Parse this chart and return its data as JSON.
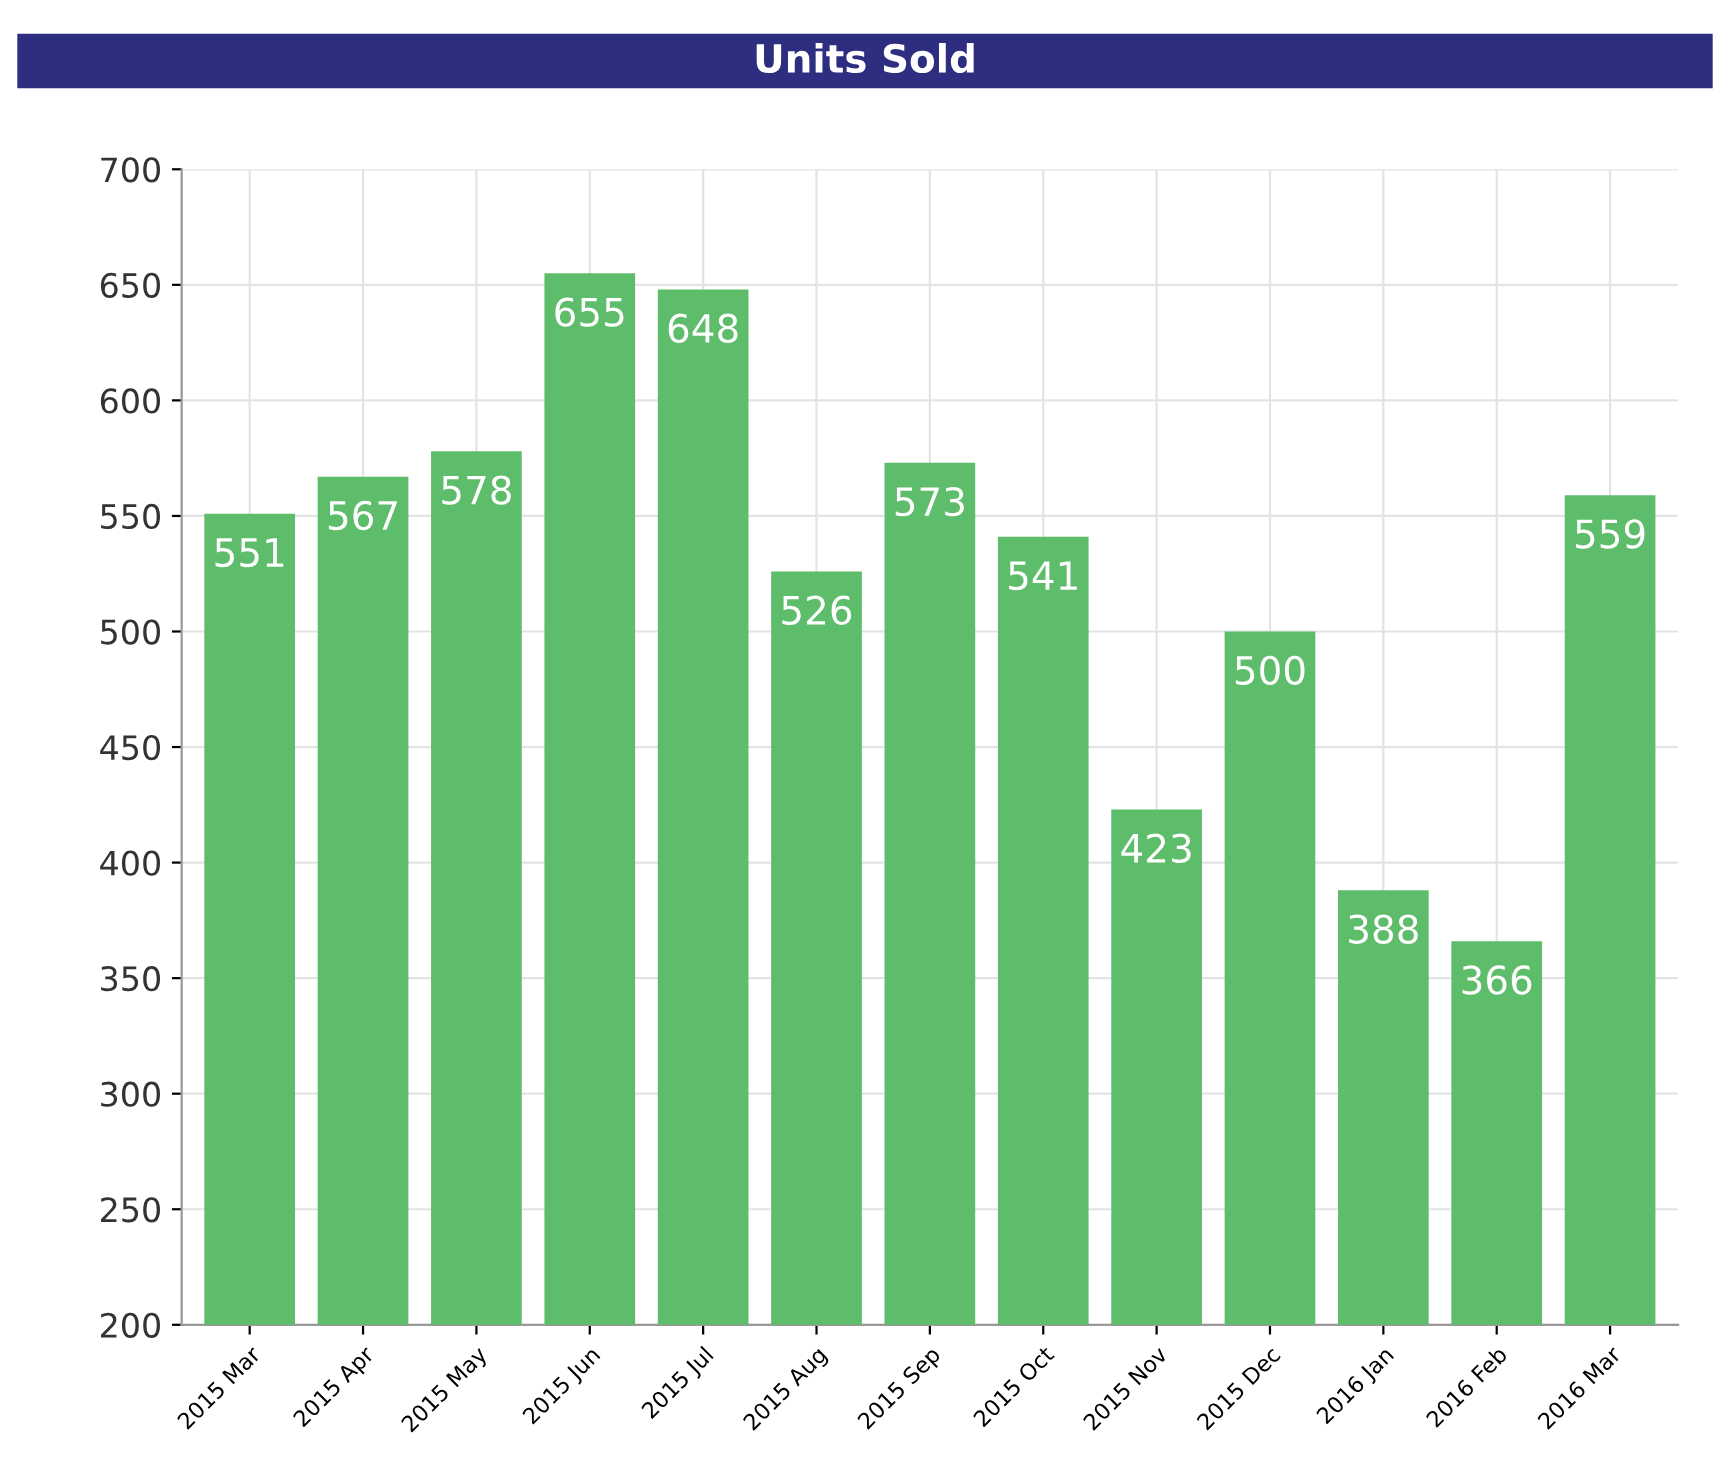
{
  "chart_data": {
    "type": "bar",
    "title": "Units Sold",
    "categories": [
      "2015 Mar",
      "2015 Apr",
      "2015 May",
      "2015 Jun",
      "2015 Jul",
      "2015 Aug",
      "2015 Sep",
      "2015 Oct",
      "2015 Nov",
      "2015 Dec",
      "2016 Jan",
      "2016 Feb",
      "2016 Mar"
    ],
    "values": [
      551,
      567,
      578,
      655,
      648,
      526,
      573,
      541,
      423,
      500,
      388,
      366,
      559
    ],
    "color": "#5ebd6a",
    "ylim": [
      200,
      700
    ],
    "yticks": [
      200,
      250,
      300,
      350,
      400,
      450,
      500,
      550,
      600,
      650,
      700
    ],
    "grid": true,
    "data_labels": true
  }
}
